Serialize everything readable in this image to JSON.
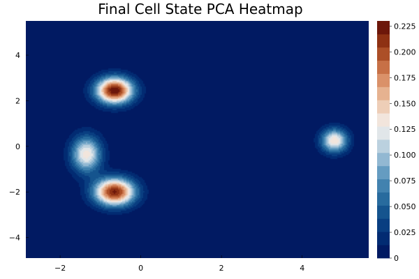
{
  "chart_data": {
    "type": "heatmap",
    "subtype": "filled-contour",
    "title": "Final Cell State PCA Heatmap",
    "xlabel": "",
    "ylabel": "",
    "xlim": [
      -2.85,
      5.65
    ],
    "ylim": [
      -4.9,
      5.5
    ],
    "x_ticks": [
      -2,
      0,
      2,
      4
    ],
    "y_ticks": [
      -4,
      -2,
      0,
      2,
      4
    ],
    "grid": false,
    "colorbar": {
      "range": [
        0,
        0.23
      ],
      "ticks": [
        0,
        0.025,
        0.05,
        0.075,
        0.1,
        0.125,
        0.15,
        0.175,
        0.2,
        0.225
      ],
      "tick_labels": [
        "0",
        "0.025",
        "0.050",
        "0.075",
        "0.100",
        "0.125",
        "0.150",
        "0.175",
        "0.200",
        "0.225"
      ],
      "levels": 18,
      "colormap": [
        "#00125a",
        "#03337a",
        "#1b5f95",
        "#4f8eb8",
        "#a8c6da",
        "#f4f1ee",
        "#ecc2a4",
        "#d48055",
        "#9e3e17",
        "#5c0a06"
      ]
    },
    "peaks": [
      {
        "x": -0.65,
        "y": 2.45,
        "value": 0.23
      },
      {
        "x": -1.35,
        "y": -0.35,
        "value": 0.135
      },
      {
        "x": -0.65,
        "y": -2.0,
        "value": 0.22
      },
      {
        "x": 4.8,
        "y": 0.25,
        "value": 0.14
      }
    ]
  }
}
